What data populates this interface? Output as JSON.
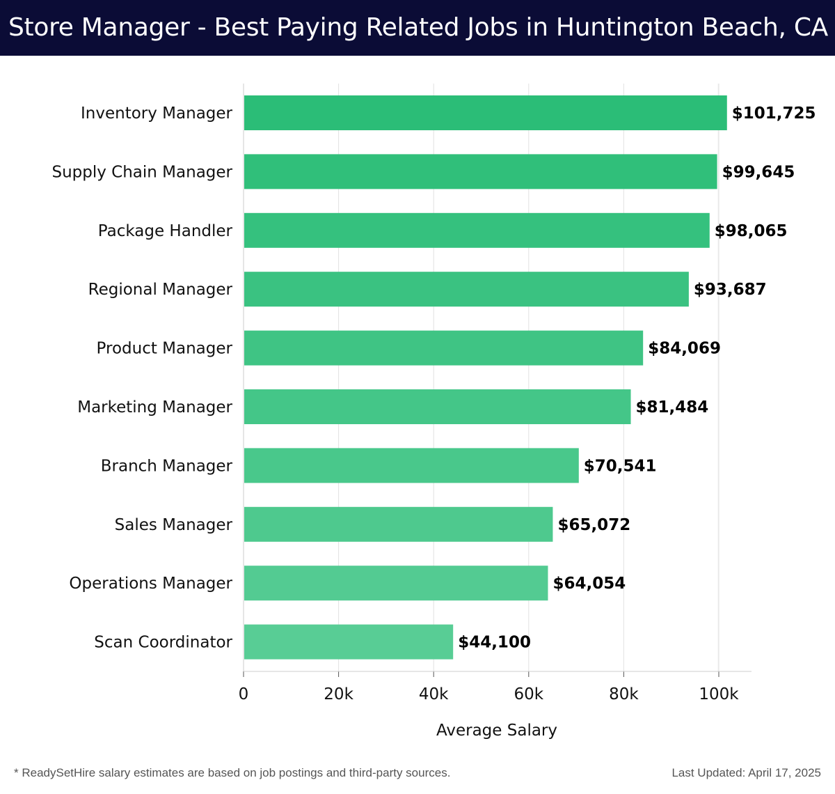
{
  "header": {
    "title": "Store Manager - Best Paying Related Jobs in Huntington Beach, CA"
  },
  "chart_data": {
    "type": "bar",
    "orientation": "horizontal",
    "categories": [
      "Inventory Manager",
      "Supply Chain Manager",
      "Package Handler",
      "Regional Manager",
      "Product Manager",
      "Marketing Manager",
      "Branch Manager",
      "Sales Manager",
      "Operations Manager",
      "Scan Coordinator"
    ],
    "values": [
      101725,
      99645,
      98065,
      93687,
      84069,
      81484,
      70541,
      65072,
      64054,
      44100
    ],
    "value_labels": [
      "$101,725",
      "$99,645",
      "$98,065",
      "$93,687",
      "$84,069",
      "$81,484",
      "$70,541",
      "$65,072",
      "$64,054",
      "$44,100"
    ],
    "xlabel": "Average Salary",
    "ylabel": "",
    "xlim": [
      0,
      107000
    ],
    "xticks": [
      0,
      20000,
      40000,
      60000,
      80000,
      100000
    ],
    "xtick_labels": [
      "0",
      "20k",
      "40k",
      "60k",
      "80k",
      "100k"
    ],
    "grid": true,
    "bar_color_dark": "#2bbd77",
    "bar_color_light": "#58cd95"
  },
  "footer": {
    "note": "* ReadySetHire salary estimates are based on job postings and third-party sources.",
    "updated": "Last Updated: April 17, 2025"
  }
}
